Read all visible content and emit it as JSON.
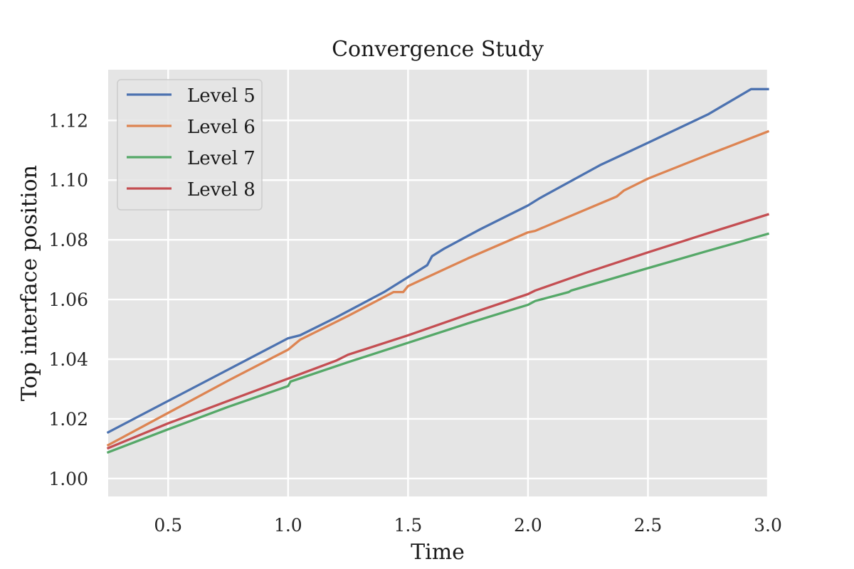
{
  "chart_data": {
    "type": "line",
    "title": "Convergence Study",
    "xlabel": "Time",
    "ylabel": "Top interface position",
    "xlim": [
      0.25,
      3.0
    ],
    "ylim": [
      0.994,
      1.137
    ],
    "xticks": [
      0.5,
      1.0,
      1.5,
      2.0,
      2.5,
      3.0
    ],
    "xtick_labels": [
      "0.5",
      "1.0",
      "1.5",
      "2.0",
      "2.5",
      "3.0"
    ],
    "yticks": [
      1.0,
      1.02,
      1.04,
      1.06,
      1.08,
      1.1,
      1.12
    ],
    "ytick_labels": [
      "1.00",
      "1.02",
      "1.04",
      "1.06",
      "1.08",
      "1.10",
      "1.12"
    ],
    "grid": true,
    "legend_position": "top-left",
    "background_color": "#e5e5e5",
    "series": [
      {
        "name": "Level 5",
        "color": "#4c72b0",
        "x": [
          0.25,
          0.5,
          0.75,
          1.0,
          1.05,
          1.2,
          1.4,
          1.58,
          1.6,
          1.65,
          1.8,
          2.0,
          2.05,
          2.3,
          2.5,
          2.75,
          2.93,
          3.0
        ],
        "y": [
          1.0155,
          1.026,
          1.0365,
          1.047,
          1.048,
          1.054,
          1.0625,
          1.0715,
          1.0745,
          1.077,
          1.0835,
          1.0915,
          1.094,
          1.105,
          1.1125,
          1.122,
          1.1305,
          1.1305
        ]
      },
      {
        "name": "Level 6",
        "color": "#dd8452",
        "x": [
          0.25,
          0.5,
          0.75,
          1.0,
          1.05,
          1.25,
          1.44,
          1.48,
          1.5,
          1.75,
          2.0,
          2.03,
          2.37,
          2.4,
          2.5,
          2.75,
          3.0
        ],
        "y": [
          1.0112,
          1.022,
          1.0328,
          1.0432,
          1.0465,
          1.0545,
          1.0625,
          1.0625,
          1.0645,
          1.0738,
          1.0825,
          1.083,
          1.0945,
          1.0965,
          1.1005,
          1.1085,
          1.1163
        ]
      },
      {
        "name": "Level 7",
        "color": "#55a868",
        "x": [
          0.25,
          0.5,
          0.75,
          1.0,
          1.01,
          1.25,
          1.5,
          1.75,
          2.0,
          2.03,
          2.17,
          2.18,
          2.5,
          2.75,
          3.0
        ],
        "y": [
          1.0088,
          1.0165,
          1.024,
          1.031,
          1.0325,
          1.039,
          1.0455,
          1.052,
          1.0582,
          1.0595,
          1.0625,
          1.063,
          1.0705,
          1.0763,
          1.082
        ]
      },
      {
        "name": "Level 8",
        "color": "#c44e52",
        "x": [
          0.25,
          0.5,
          0.75,
          1.0,
          1.2,
          1.25,
          1.5,
          1.75,
          2.0,
          2.03,
          2.25,
          2.5,
          2.75,
          3.0
        ],
        "y": [
          1.0102,
          1.0185,
          1.026,
          1.0335,
          1.0395,
          1.0415,
          1.048,
          1.055,
          1.0618,
          1.063,
          1.0692,
          1.0758,
          1.0822,
          1.0885
        ]
      }
    ]
  }
}
